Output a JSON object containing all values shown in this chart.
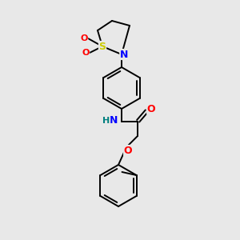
{
  "bg_color": "#e8e8e8",
  "bond_color": "#000000",
  "atom_colors": {
    "S": "#cccc00",
    "N": "#0000ff",
    "O": "#ff0000",
    "H": "#008080",
    "C": "#000000"
  },
  "figsize": [
    3.0,
    3.0
  ],
  "dpi": 100
}
